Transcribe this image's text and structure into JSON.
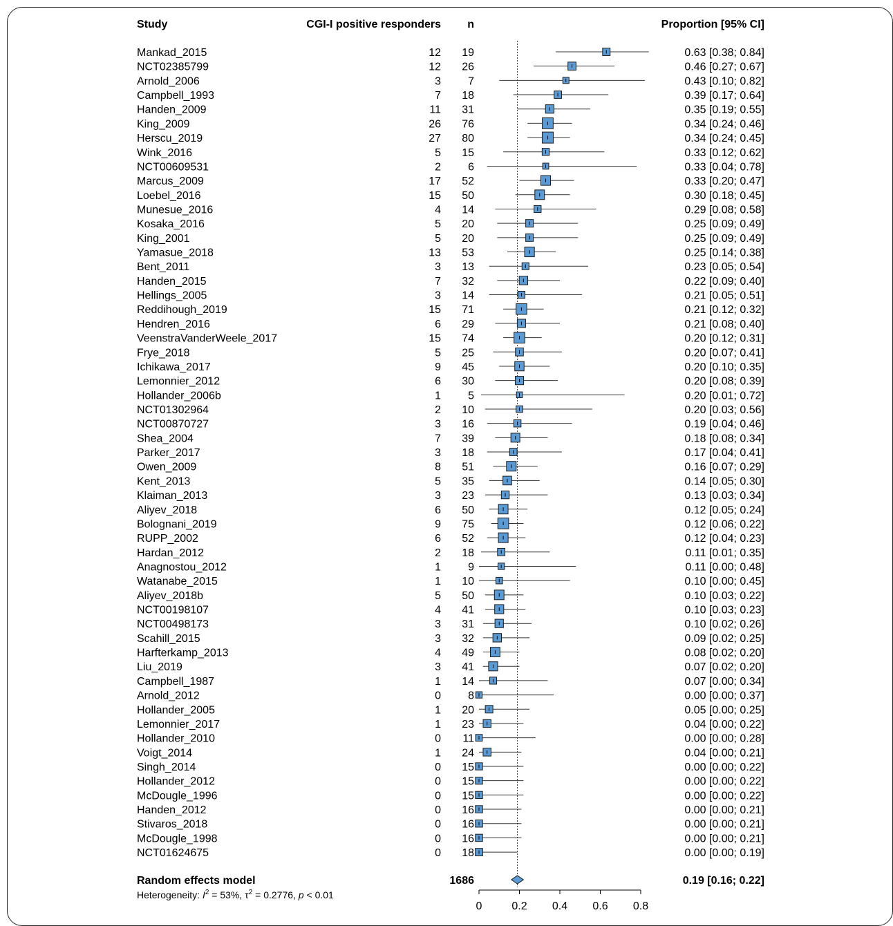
{
  "headers": {
    "study": "Study",
    "events": "CGI-I positive responders",
    "n": "n",
    "ci": "Proportion [95% CI]"
  },
  "chart_data": {
    "type": "forest",
    "xlim": [
      0,
      0.8
    ],
    "xticks": [
      "0",
      "0.2",
      "0.4",
      "0.6",
      "0.8"
    ],
    "tick_values": [
      0,
      0.2,
      0.4,
      0.6,
      0.8
    ],
    "reference_line": 0.19,
    "rows": [
      {
        "study": "Mankad_2015",
        "events": "12",
        "n": "19",
        "est": 0.63,
        "lo": 0.38,
        "hi": 0.84,
        "ci_text": "0.63 [0.38; 0.84]"
      },
      {
        "study": "NCT02385799",
        "events": "12",
        "n": "26",
        "est": 0.46,
        "lo": 0.27,
        "hi": 0.67,
        "ci_text": "0.46 [0.27; 0.67]"
      },
      {
        "study": "Arnold_2006",
        "events": "3",
        "n": "7",
        "est": 0.43,
        "lo": 0.1,
        "hi": 0.82,
        "ci_text": "0.43 [0.10; 0.82]"
      },
      {
        "study": "Campbell_1993",
        "events": "7",
        "n": "18",
        "est": 0.39,
        "lo": 0.17,
        "hi": 0.64,
        "ci_text": "0.39 [0.17; 0.64]"
      },
      {
        "study": "Handen_2009",
        "events": "11",
        "n": "31",
        "est": 0.35,
        "lo": 0.19,
        "hi": 0.55,
        "ci_text": "0.35 [0.19; 0.55]"
      },
      {
        "study": "King_2009",
        "events": "26",
        "n": "76",
        "est": 0.34,
        "lo": 0.24,
        "hi": 0.46,
        "ci_text": "0.34 [0.24; 0.46]"
      },
      {
        "study": "Herscu_2019",
        "events": "27",
        "n": "80",
        "est": 0.34,
        "lo": 0.24,
        "hi": 0.45,
        "ci_text": "0.34 [0.24; 0.45]"
      },
      {
        "study": "Wink_2016",
        "events": "5",
        "n": "15",
        "est": 0.33,
        "lo": 0.12,
        "hi": 0.62,
        "ci_text": "0.33 [0.12; 0.62]"
      },
      {
        "study": "NCT00609531",
        "events": "2",
        "n": "6",
        "est": 0.33,
        "lo": 0.04,
        "hi": 0.78,
        "ci_text": "0.33 [0.04; 0.78]"
      },
      {
        "study": "Marcus_2009",
        "events": "17",
        "n": "52",
        "est": 0.33,
        "lo": 0.2,
        "hi": 0.47,
        "ci_text": "0.33 [0.20; 0.47]"
      },
      {
        "study": "Loebel_2016",
        "events": "15",
        "n": "50",
        "est": 0.3,
        "lo": 0.18,
        "hi": 0.45,
        "ci_text": "0.30 [0.18; 0.45]"
      },
      {
        "study": "Munesue_2016",
        "events": "4",
        "n": "14",
        "est": 0.29,
        "lo": 0.08,
        "hi": 0.58,
        "ci_text": "0.29 [0.08; 0.58]"
      },
      {
        "study": "Kosaka_2016",
        "events": "5",
        "n": "20",
        "est": 0.25,
        "lo": 0.09,
        "hi": 0.49,
        "ci_text": "0.25 [0.09; 0.49]"
      },
      {
        "study": "King_2001",
        "events": "5",
        "n": "20",
        "est": 0.25,
        "lo": 0.09,
        "hi": 0.49,
        "ci_text": "0.25 [0.09; 0.49]"
      },
      {
        "study": "Yamasue_2018",
        "events": "13",
        "n": "53",
        "est": 0.25,
        "lo": 0.14,
        "hi": 0.38,
        "ci_text": "0.25 [0.14; 0.38]"
      },
      {
        "study": "Bent_2011",
        "events": "3",
        "n": "13",
        "est": 0.23,
        "lo": 0.05,
        "hi": 0.54,
        "ci_text": "0.23 [0.05; 0.54]"
      },
      {
        "study": "Handen_2015",
        "events": "7",
        "n": "32",
        "est": 0.22,
        "lo": 0.09,
        "hi": 0.4,
        "ci_text": "0.22 [0.09; 0.40]"
      },
      {
        "study": "Hellings_2005",
        "events": "3",
        "n": "14",
        "est": 0.21,
        "lo": 0.05,
        "hi": 0.51,
        "ci_text": "0.21 [0.05; 0.51]"
      },
      {
        "study": "Reddihough_2019",
        "events": "15",
        "n": "71",
        "est": 0.21,
        "lo": 0.12,
        "hi": 0.32,
        "ci_text": "0.21 [0.12; 0.32]"
      },
      {
        "study": "Hendren_2016",
        "events": "6",
        "n": "29",
        "est": 0.21,
        "lo": 0.08,
        "hi": 0.4,
        "ci_text": "0.21 [0.08; 0.40]"
      },
      {
        "study": "VeenstraVanderWeele_2017",
        "events": "15",
        "n": "74",
        "est": 0.2,
        "lo": 0.12,
        "hi": 0.31,
        "ci_text": "0.20 [0.12; 0.31]"
      },
      {
        "study": "Frye_2018",
        "events": "5",
        "n": "25",
        "est": 0.2,
        "lo": 0.07,
        "hi": 0.41,
        "ci_text": "0.20 [0.07; 0.41]"
      },
      {
        "study": "Ichikawa_2017",
        "events": "9",
        "n": "45",
        "est": 0.2,
        "lo": 0.1,
        "hi": 0.35,
        "ci_text": "0.20 [0.10; 0.35]"
      },
      {
        "study": "Lemonnier_2012",
        "events": "6",
        "n": "30",
        "est": 0.2,
        "lo": 0.08,
        "hi": 0.39,
        "ci_text": "0.20 [0.08; 0.39]"
      },
      {
        "study": "Hollander_2006b",
        "events": "1",
        "n": "5",
        "est": 0.2,
        "lo": 0.01,
        "hi": 0.72,
        "ci_text": "0.20 [0.01; 0.72]"
      },
      {
        "study": "NCT01302964",
        "events": "2",
        "n": "10",
        "est": 0.2,
        "lo": 0.03,
        "hi": 0.56,
        "ci_text": "0.20 [0.03; 0.56]"
      },
      {
        "study": "NCT00870727",
        "events": "3",
        "n": "16",
        "est": 0.19,
        "lo": 0.04,
        "hi": 0.46,
        "ci_text": "0.19 [0.04; 0.46]"
      },
      {
        "study": "Shea_2004",
        "events": "7",
        "n": "39",
        "est": 0.18,
        "lo": 0.08,
        "hi": 0.34,
        "ci_text": "0.18 [0.08; 0.34]"
      },
      {
        "study": "Parker_2017",
        "events": "3",
        "n": "18",
        "est": 0.17,
        "lo": 0.04,
        "hi": 0.41,
        "ci_text": "0.17 [0.04; 0.41]"
      },
      {
        "study": "Owen_2009",
        "events": "8",
        "n": "51",
        "est": 0.16,
        "lo": 0.07,
        "hi": 0.29,
        "ci_text": "0.16 [0.07; 0.29]"
      },
      {
        "study": "Kent_2013",
        "events": "5",
        "n": "35",
        "est": 0.14,
        "lo": 0.05,
        "hi": 0.3,
        "ci_text": "0.14 [0.05; 0.30]"
      },
      {
        "study": "Klaiman_2013",
        "events": "3",
        "n": "23",
        "est": 0.13,
        "lo": 0.03,
        "hi": 0.34,
        "ci_text": "0.13 [0.03; 0.34]"
      },
      {
        "study": "Aliyev_2018",
        "events": "6",
        "n": "50",
        "est": 0.12,
        "lo": 0.05,
        "hi": 0.24,
        "ci_text": "0.12 [0.05; 0.24]"
      },
      {
        "study": "Bolognani_2019",
        "events": "9",
        "n": "75",
        "est": 0.12,
        "lo": 0.06,
        "hi": 0.22,
        "ci_text": "0.12 [0.06; 0.22]"
      },
      {
        "study": "RUPP_2002",
        "events": "6",
        "n": "52",
        "est": 0.12,
        "lo": 0.04,
        "hi": 0.23,
        "ci_text": "0.12 [0.04; 0.23]"
      },
      {
        "study": "Hardan_2012",
        "events": "2",
        "n": "18",
        "est": 0.11,
        "lo": 0.01,
        "hi": 0.35,
        "ci_text": "0.11 [0.01; 0.35]"
      },
      {
        "study": "Anagnostou_2012",
        "events": "1",
        "n": "9",
        "est": 0.11,
        "lo": 0.0,
        "hi": 0.48,
        "ci_text": "0.11 [0.00; 0.48]"
      },
      {
        "study": "Watanabe_2015",
        "events": "1",
        "n": "10",
        "est": 0.1,
        "lo": 0.0,
        "hi": 0.45,
        "ci_text": "0.10 [0.00; 0.45]"
      },
      {
        "study": "Aliyev_2018b",
        "events": "5",
        "n": "50",
        "est": 0.1,
        "lo": 0.03,
        "hi": 0.22,
        "ci_text": "0.10 [0.03; 0.22]"
      },
      {
        "study": "NCT00198107",
        "events": "4",
        "n": "41",
        "est": 0.1,
        "lo": 0.03,
        "hi": 0.23,
        "ci_text": "0.10 [0.03; 0.23]"
      },
      {
        "study": "NCT00498173",
        "events": "3",
        "n": "31",
        "est": 0.1,
        "lo": 0.02,
        "hi": 0.26,
        "ci_text": "0.10 [0.02; 0.26]"
      },
      {
        "study": "Scahill_2015",
        "events": "3",
        "n": "32",
        "est": 0.09,
        "lo": 0.02,
        "hi": 0.25,
        "ci_text": "0.09 [0.02; 0.25]"
      },
      {
        "study": "Harfterkamp_2013",
        "events": "4",
        "n": "49",
        "est": 0.08,
        "lo": 0.02,
        "hi": 0.2,
        "ci_text": "0.08 [0.02; 0.20]"
      },
      {
        "study": "Liu_2019",
        "events": "3",
        "n": "41",
        "est": 0.07,
        "lo": 0.02,
        "hi": 0.2,
        "ci_text": "0.07 [0.02; 0.20]"
      },
      {
        "study": "Campbell_1987",
        "events": "1",
        "n": "14",
        "est": 0.07,
        "lo": 0.0,
        "hi": 0.34,
        "ci_text": "0.07 [0.00; 0.34]"
      },
      {
        "study": "Arnold_2012",
        "events": "0",
        "n": "8",
        "est": 0.0,
        "lo": 0.0,
        "hi": 0.37,
        "ci_text": "0.00 [0.00; 0.37]"
      },
      {
        "study": "Hollander_2005",
        "events": "1",
        "n": "20",
        "est": 0.05,
        "lo": 0.0,
        "hi": 0.25,
        "ci_text": "0.05 [0.00; 0.25]"
      },
      {
        "study": "Lemonnier_2017",
        "events": "1",
        "n": "23",
        "est": 0.04,
        "lo": 0.0,
        "hi": 0.22,
        "ci_text": "0.04 [0.00; 0.22]"
      },
      {
        "study": "Hollander_2010",
        "events": "0",
        "n": "11",
        "est": 0.0,
        "lo": 0.0,
        "hi": 0.28,
        "ci_text": "0.00 [0.00; 0.28]"
      },
      {
        "study": "Voigt_2014",
        "events": "1",
        "n": "24",
        "est": 0.04,
        "lo": 0.0,
        "hi": 0.21,
        "ci_text": "0.04 [0.00; 0.21]"
      },
      {
        "study": "Singh_2014",
        "events": "0",
        "n": "15",
        "est": 0.0,
        "lo": 0.0,
        "hi": 0.22,
        "ci_text": "0.00 [0.00; 0.22]"
      },
      {
        "study": "Hollander_2012",
        "events": "0",
        "n": "15",
        "est": 0.0,
        "lo": 0.0,
        "hi": 0.22,
        "ci_text": "0.00 [0.00; 0.22]"
      },
      {
        "study": "McDougle_1996",
        "events": "0",
        "n": "15",
        "est": 0.0,
        "lo": 0.0,
        "hi": 0.22,
        "ci_text": "0.00 [0.00; 0.22]"
      },
      {
        "study": "Handen_2012",
        "events": "0",
        "n": "16",
        "est": 0.0,
        "lo": 0.0,
        "hi": 0.21,
        "ci_text": "0.00 [0.00; 0.21]"
      },
      {
        "study": "Stivaros_2018",
        "events": "0",
        "n": "16",
        "est": 0.0,
        "lo": 0.0,
        "hi": 0.21,
        "ci_text": "0.00 [0.00; 0.21]"
      },
      {
        "study": "McDougle_1998",
        "events": "0",
        "n": "16",
        "est": 0.0,
        "lo": 0.0,
        "hi": 0.21,
        "ci_text": "0.00 [0.00; 0.21]"
      },
      {
        "study": "NCT01624675",
        "events": "0",
        "n": "18",
        "est": 0.0,
        "lo": 0.0,
        "hi": 0.19,
        "ci_text": "0.00 [0.00; 0.19]"
      }
    ],
    "summary": {
      "label": "Random effects model",
      "n_total": "1686",
      "est": 0.19,
      "lo": 0.16,
      "hi": 0.22,
      "ci_text": "0.19 [0.16; 0.22]"
    },
    "heterogeneity": {
      "prefix": "Heterogeneity: ",
      "i2_symbol": "I",
      "i2_value": " = 53%, ",
      "tau_symbol": "τ",
      "tau_value": " = 0.2776, ",
      "p_symbol": "p",
      "p_value": " < 0.01"
    },
    "colors": {
      "box_fill": "#5b9bd5",
      "box_stroke": "#1a1a1a",
      "ci_line": "#333333",
      "ref_line": "#333333",
      "diamond_fill": "#5b9bd5"
    }
  }
}
